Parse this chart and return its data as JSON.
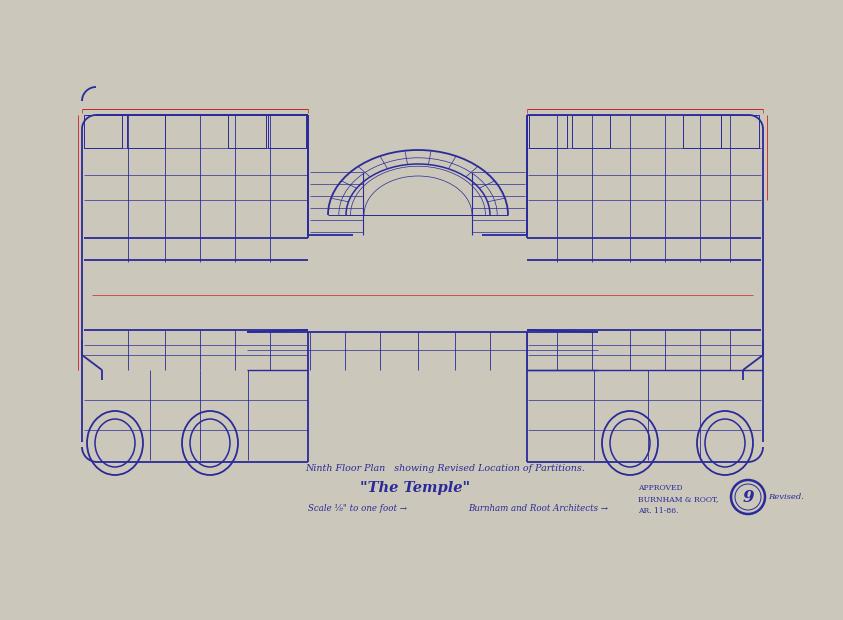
{
  "bg_color": "#cbc7ba",
  "paper_color": "#ddd9cc",
  "line_color": "#2a2a9a",
  "red_color": "#cc2222",
  "title_line1": "Ninth Floor Plan   showing Revised Location of Partitions.",
  "title_line2": "\"The Temple\"",
  "title_line3": "Scale ⅛\" to one foot →",
  "title_line4": "Burnham and Root Architects →",
  "approved_text": "APPROVED\nBURNHAM & ROOT,\nAR. 11-86.",
  "stamp_number": "9",
  "revised_text": "Revised."
}
